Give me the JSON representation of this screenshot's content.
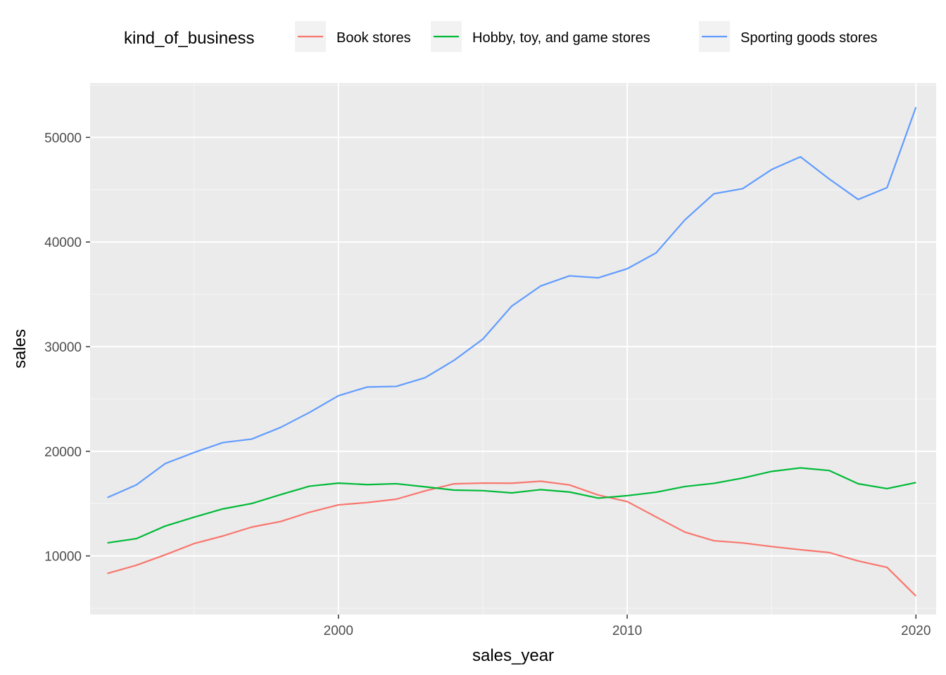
{
  "chart_data": {
    "type": "line",
    "xlabel": "sales_year",
    "ylabel": "sales",
    "xlim": [
      1991.4,
      2020.7
    ],
    "ylim": [
      4400,
      55200
    ],
    "x_ticks": [
      2000,
      2010,
      2020
    ],
    "x_minor_ticks": [
      1995,
      2005,
      2015
    ],
    "y_ticks": [
      10000,
      20000,
      30000,
      40000,
      50000
    ],
    "y_minor_ticks": [
      5000,
      15000,
      25000,
      35000,
      45000,
      55000
    ],
    "grid": true,
    "legend": {
      "title": "kind_of_business",
      "position": "top"
    },
    "x": [
      1992,
      1993,
      1994,
      1995,
      1996,
      1997,
      1998,
      1999,
      2000,
      2001,
      2002,
      2003,
      2004,
      2005,
      2006,
      2007,
      2008,
      2009,
      2010,
      2011,
      2012,
      2013,
      2014,
      2015,
      2016,
      2017,
      2018,
      2019,
      2020
    ],
    "series": [
      {
        "name": "Book stores",
        "color": "#F8766D",
        "values": [
          8327,
          9108,
          10107,
          11181,
          11909,
          12757,
          13293,
          14176,
          14879,
          15105,
          15420,
          16212,
          16892,
          16960,
          16950,
          17140,
          16786,
          15821,
          15198,
          13727,
          12275,
          11452,
          11243,
          10898,
          10594,
          10322,
          9519,
          8906,
          6169
        ]
      },
      {
        "name": "Hobby, toy, and game stores",
        "color": "#00BA38",
        "values": [
          11251,
          11652,
          12854,
          13702,
          14497,
          15014,
          15859,
          16668,
          16958,
          16815,
          16901,
          16606,
          16293,
          16239,
          16027,
          16335,
          16109,
          15525,
          15762,
          16089,
          16632,
          16935,
          17440,
          18076,
          18413,
          18162,
          16897,
          16432,
          17012
        ]
      },
      {
        "name": "Sporting goods stores",
        "color": "#619CFF",
        "values": [
          15583,
          16791,
          18825,
          19885,
          20834,
          21169,
          22287,
          23714,
          25312,
          26145,
          26201,
          27033,
          28685,
          30713,
          33868,
          35791,
          36768,
          36580,
          37443,
          38960,
          42118,
          44607,
          45100,
          46923,
          48143,
          46019,
          44067,
          45194,
          52881
        ]
      }
    ]
  }
}
